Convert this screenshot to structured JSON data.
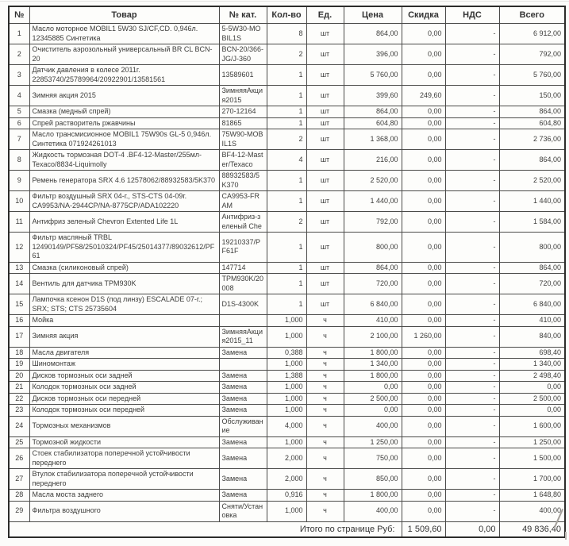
{
  "table": {
    "columns": [
      "№",
      "Товар",
      "№ кат.",
      "Кол-во",
      "Ед.",
      "Цена",
      "Скидка",
      "НДС",
      "Всего"
    ],
    "rows": [
      {
        "num": "1",
        "name": "Масло моторное MOBIL1 5W30 SJ/CF,CD. 0,946л. 12345885 Синтетика",
        "cat": "5-5W30-MOBIL1S",
        "qty": "8",
        "unit": "шт",
        "price": "864,00",
        "discount": "0,00",
        "vat": "-",
        "total": "6 912,00"
      },
      {
        "num": "2",
        "name": "Очиститель аэрозольный универсальный BR CL BCN-20",
        "cat": "BCN-20/366-JG/J-360",
        "qty": "2",
        "unit": "шт",
        "price": "396,00",
        "discount": "0,00",
        "vat": "-",
        "total": "792,00"
      },
      {
        "num": "3",
        "name": "Датчик давления в колесе 2011г. 22853740/25789964/20922901/13581561",
        "cat": "13589601",
        "qty": "1",
        "unit": "шт",
        "price": "5 760,00",
        "discount": "0,00",
        "vat": "-",
        "total": "5 760,00"
      },
      {
        "num": "4",
        "name": "Зимняя акция 2015",
        "cat": "ЗимняяАкция2015",
        "qty": "1",
        "unit": "шт",
        "price": "399,60",
        "discount": "249,60",
        "vat": "-",
        "total": "150,00"
      },
      {
        "num": "5",
        "name": "Смазка (медный спрей)",
        "cat": "270-12164",
        "qty": "1",
        "unit": "шт",
        "price": "864,00",
        "discount": "0,00",
        "vat": "-",
        "total": "864,00"
      },
      {
        "num": "6",
        "name": "Спрей растворитель ржавчины",
        "cat": "81865",
        "qty": "1",
        "unit": "шт",
        "price": "604,80",
        "discount": "0,00",
        "vat": "-",
        "total": "604,80"
      },
      {
        "num": "7",
        "name": "Масло трансмисионное MOBIL1 75W90s GL-5 0,946л. Синтетика 071924261013",
        "cat": "75W90-MOBIL1S",
        "qty": "2",
        "unit": "шт",
        "price": "1 368,00",
        "discount": "0,00",
        "vat": "-",
        "total": "2 736,00"
      },
      {
        "num": "8",
        "name": "Жидкость тормозная DOT-4 .BF4-12-Master/255мл-Texaco/8834-Liquimolly",
        "cat": "BF4-12-Master/Texaco",
        "qty": "4",
        "unit": "шт",
        "price": "216,00",
        "discount": "0,00",
        "vat": "-",
        "total": "864,00"
      },
      {
        "num": "9",
        "name": "Ремень генератора SRX 4.6 12578062/88932583/5K370",
        "cat": "88932583/5K370",
        "qty": "1",
        "unit": "шт",
        "price": "2 520,00",
        "discount": "0,00",
        "vat": "-",
        "total": "2 520,00"
      },
      {
        "num": "10",
        "name": "Фильтр воздушный SRX 04-г., STS-CTS 04-09г. CA9953/NA-2944CP/NA-8775CP/ADA102220",
        "cat": "CA9953-FRAM",
        "qty": "1",
        "unit": "шт",
        "price": "1 440,00",
        "discount": "0,00",
        "vat": "-",
        "total": "1 440,00"
      },
      {
        "num": "11",
        "name": "Антифриз зеленый Chevron Extented Life 1L",
        "cat": "Антифриз-зеленый Che",
        "qty": "2",
        "unit": "шт",
        "price": "792,00",
        "discount": "0,00",
        "vat": "-",
        "total": "1 584,00"
      },
      {
        "num": "12",
        "name": "Фильтр масляный TRBL 12490149/PF58/25010324/PF45/25014377/89032612/PF61",
        "cat": "19210337/PF61F",
        "qty": "1",
        "unit": "шт",
        "price": "800,00",
        "discount": "0,00",
        "vat": "-",
        "total": "800,00"
      },
      {
        "num": "13",
        "name": "Смазка (силиконовый спрей)",
        "cat": "147714",
        "qty": "1",
        "unit": "шт",
        "price": "864,00",
        "discount": "0,00",
        "vat": "-",
        "total": "864,00"
      },
      {
        "num": "14",
        "name": "Вентиль для датчика TPM930K",
        "cat": "TPM930K/20008",
        "qty": "1",
        "unit": "шт",
        "price": "720,00",
        "discount": "0,00",
        "vat": "-",
        "total": "720,00"
      },
      {
        "num": "15",
        "name": "Лампочка ксенон D1S (под линзу) ESCALADE 07-г.; SRX; STS; CTS 25735604",
        "cat": "D1S-4300K",
        "qty": "1",
        "unit": "шт",
        "price": "6 840,00",
        "discount": "0,00",
        "vat": "-",
        "total": "6 840,00"
      },
      {
        "num": "16",
        "name": "Мойка",
        "cat": "",
        "qty": "1,000",
        "unit": "ч",
        "price": "410,00",
        "discount": "0,00",
        "vat": "-",
        "total": "410,00"
      },
      {
        "num": "17",
        "name": "Зимняя акция",
        "cat": "ЗимняяАкция2015_11",
        "qty": "1,000",
        "unit": "ч",
        "price": "2 100,00",
        "discount": "1 260,00",
        "vat": "-",
        "total": "840,00"
      },
      {
        "num": "18",
        "name": "Масла двигателя",
        "cat": "Замена",
        "qty": "0,388",
        "unit": "ч",
        "price": "1 800,00",
        "discount": "0,00",
        "vat": "-",
        "total": "698,40"
      },
      {
        "num": "19",
        "name": "Шиномонтаж",
        "cat": "",
        "qty": "1,000",
        "unit": "ч",
        "price": "1 340,00",
        "discount": "0,00",
        "vat": "-",
        "total": "1 340,00"
      },
      {
        "num": "20",
        "name": "Дисков тормозных оси задней",
        "cat": "Замена",
        "qty": "1,388",
        "unit": "ч",
        "price": "1 800,00",
        "discount": "0,00",
        "vat": "-",
        "total": "2 498,40"
      },
      {
        "num": "21",
        "name": "Колодок тормозных оси задней",
        "cat": "Замена",
        "qty": "1,000",
        "unit": "ч",
        "price": "0,00",
        "discount": "0,00",
        "vat": "-",
        "total": "0,00"
      },
      {
        "num": "22",
        "name": "Дисков тормозных оси передней",
        "cat": "Замена",
        "qty": "1,000",
        "unit": "ч",
        "price": "2 500,00",
        "discount": "0,00",
        "vat": "-",
        "total": "2 500,00"
      },
      {
        "num": "23",
        "name": "Колодок тормозных оси передней",
        "cat": "Замена",
        "qty": "1,000",
        "unit": "ч",
        "price": "0,00",
        "discount": "0,00",
        "vat": "-",
        "total": "0,00"
      },
      {
        "num": "24",
        "name": "Тормозных механизмов",
        "cat": "Обслуживание",
        "qty": "4,000",
        "unit": "ч",
        "price": "400,00",
        "discount": "0,00",
        "vat": "-",
        "total": "1 600,00"
      },
      {
        "num": "25",
        "name": "Тормозной жидкости",
        "cat": "Замена",
        "qty": "1,000",
        "unit": "ч",
        "price": "1 250,00",
        "discount": "0,00",
        "vat": "-",
        "total": "1 250,00"
      },
      {
        "num": "26",
        "name": "Стоек стабилизатора поперечной устойчивости переднего",
        "cat": "Замена",
        "qty": "2,000",
        "unit": "ч",
        "price": "750,00",
        "discount": "0,00",
        "vat": "-",
        "total": "1 500,00"
      },
      {
        "num": "27",
        "name": "Втулок стабилизатора поперечной устойчивости переднего",
        "cat": "Замена",
        "qty": "2,000",
        "unit": "ч",
        "price": "850,00",
        "discount": "0,00",
        "vat": "-",
        "total": "1 700,00"
      },
      {
        "num": "28",
        "name": "Масла моста заднего",
        "cat": "Замена",
        "qty": "0,916",
        "unit": "ч",
        "price": "1 800,00",
        "discount": "0,00",
        "vat": "-",
        "total": "1 648,80"
      },
      {
        "num": "29",
        "name": "Фильтра воздушного",
        "cat": "Сняти/Установка",
        "qty": "1,000",
        "unit": "ч",
        "price": "400,00",
        "discount": "0,00",
        "vat": "-",
        "total": "400,00"
      }
    ],
    "footer": {
      "label": "Итого по странице Руб:",
      "discount_total": "1 509,60",
      "vat_total": "0,00",
      "grand_total": "49 836,40"
    }
  }
}
